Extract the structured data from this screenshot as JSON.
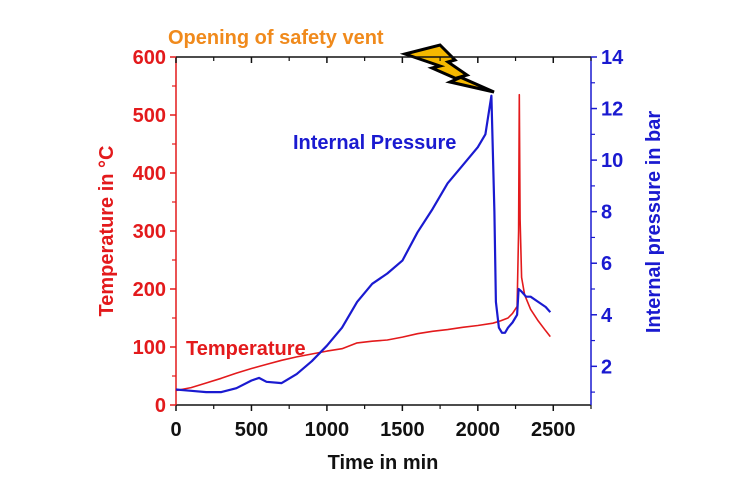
{
  "chart_data": {
    "type": "line",
    "title": "",
    "annotation": "Opening of safety vent",
    "xlabel": "Time in min",
    "ylabel_left": "Temperature in °C",
    "ylabel_right": "Internal pressure in bar",
    "xlim": [
      0,
      2750
    ],
    "ylim_left": [
      0,
      600
    ],
    "ylim_right": [
      0.5,
      14
    ],
    "x_ticks": [
      0,
      500,
      1000,
      1500,
      2000,
      2500
    ],
    "x_tick_labels": [
      "0",
      "500",
      "1000",
      "1500",
      "2000",
      "2500"
    ],
    "y_left_ticks": [
      0,
      100,
      200,
      300,
      400,
      500,
      600
    ],
    "y_left_tick_labels": [
      "0",
      "100",
      "200",
      "300",
      "400",
      "500",
      "600"
    ],
    "y_right_ticks": [
      2,
      4,
      6,
      8,
      10,
      12,
      14
    ],
    "y_right_tick_labels": [
      "2",
      "4",
      "6",
      "8",
      "10",
      "12",
      "14"
    ],
    "grid": false,
    "colors": {
      "temperature": "#e31a1c",
      "pressure": "#1a1ad0",
      "annotation": "#f08a1c",
      "bolt": "#f5b800"
    },
    "series": [
      {
        "name": "Temperature",
        "axis": "left",
        "x": [
          0,
          100,
          200,
          300,
          400,
          500,
          600,
          700,
          800,
          900,
          1000,
          1100,
          1200,
          1300,
          1400,
          1500,
          1600,
          1700,
          1800,
          1900,
          2000,
          2100,
          2150,
          2200,
          2230,
          2260,
          2270,
          2275,
          2280,
          2290,
          2310,
          2350,
          2400,
          2450,
          2480
        ],
        "values": [
          25,
          30,
          38,
          46,
          55,
          63,
          70,
          77,
          83,
          88,
          93,
          97,
          107,
          110,
          112,
          117,
          123,
          127,
          130,
          134,
          137,
          141,
          145,
          150,
          158,
          170,
          300,
          535,
          320,
          220,
          190,
          165,
          145,
          128,
          118
        ]
      },
      {
        "name": "Internal Pressure",
        "axis": "right",
        "x": [
          0,
          100,
          200,
          300,
          400,
          500,
          550,
          600,
          700,
          800,
          900,
          1000,
          1100,
          1200,
          1300,
          1400,
          1500,
          1600,
          1700,
          1800,
          1900,
          2000,
          2050,
          2090,
          2110,
          2120,
          2140,
          2160,
          2180,
          2200,
          2230,
          2260,
          2270,
          2290,
          2320,
          2350,
          2400,
          2450,
          2480
        ],
        "values": [
          1.1,
          1.05,
          1.0,
          1.0,
          1.15,
          1.45,
          1.55,
          1.4,
          1.35,
          1.7,
          2.2,
          2.8,
          3.5,
          4.5,
          5.2,
          5.6,
          6.1,
          7.2,
          8.1,
          9.1,
          9.8,
          10.5,
          11.0,
          12.5,
          8.0,
          4.5,
          3.5,
          3.3,
          3.3,
          3.5,
          3.7,
          4.0,
          5.0,
          4.9,
          4.7,
          4.7,
          4.5,
          4.3,
          4.1
        ]
      }
    ],
    "series_labels": {
      "temperature": "Temperature",
      "pressure": "Internal Pressure"
    }
  }
}
